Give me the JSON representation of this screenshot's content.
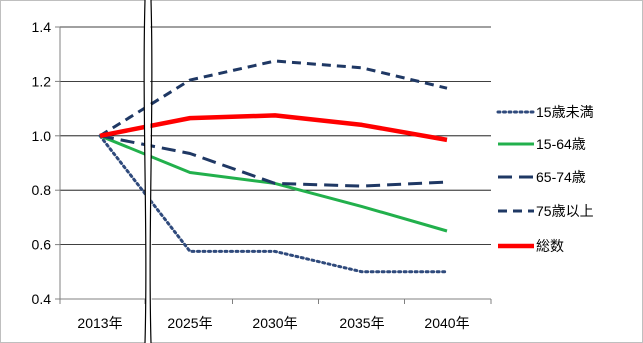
{
  "chart_data": {
    "type": "line",
    "title": "",
    "xlabel": "",
    "ylabel": "",
    "categories": [
      "2013年",
      "2025年",
      "2030年",
      "2035年",
      "2040年"
    ],
    "y_ticks": [
      "0.4",
      "0.6",
      "0.8",
      "1.0",
      "1.2",
      "1.4"
    ],
    "ylim": [
      0.4,
      1.4
    ],
    "grid": "horizontal",
    "legend_position": "right",
    "axis_break": "between 2013年 and 2025年",
    "series": [
      {
        "name": "15歳未満",
        "values": [
          1.0,
          0.575,
          0.575,
          0.5,
          0.5
        ],
        "color": "#2f4a7c",
        "dash": "dotted"
      },
      {
        "name": "15-64歳",
        "values": [
          1.0,
          0.865,
          0.825,
          0.74,
          0.65
        ],
        "color": "#22b04c",
        "dash": "solid"
      },
      {
        "name": "65-74歳",
        "values": [
          1.0,
          0.935,
          0.825,
          0.815,
          0.83
        ],
        "color": "#1f3864",
        "dash": "long-dash"
      },
      {
        "name": "75歳以上",
        "values": [
          1.0,
          1.205,
          1.275,
          1.25,
          1.175
        ],
        "color": "#1f3864",
        "dash": "dash"
      },
      {
        "name": "総数",
        "values": [
          1.0,
          1.065,
          1.075,
          1.04,
          0.985
        ],
        "color": "#ff0000",
        "dash": "solid"
      }
    ]
  }
}
